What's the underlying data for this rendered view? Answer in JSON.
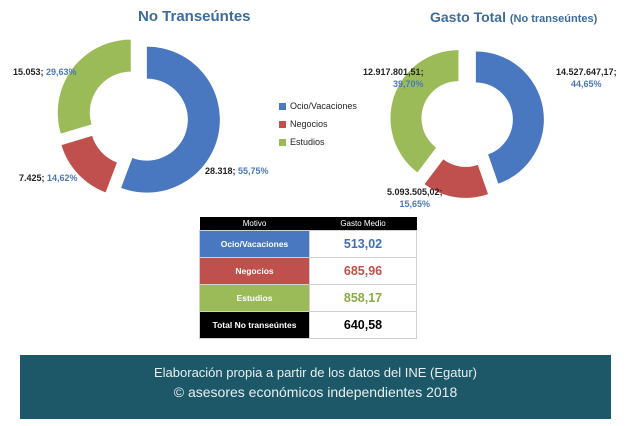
{
  "colors": {
    "blue": "#4a78c0",
    "red": "#c0504d",
    "green": "#9bbb59",
    "title": "#3d6b9c",
    "footer_bg": "#1d5868"
  },
  "chart_data": [
    {
      "type": "pie",
      "title": "No Transeúntes",
      "subtitle": "",
      "categories": [
        "Ocio/Vacaciones",
        "Negocios",
        "Estudios"
      ],
      "values": [
        28318,
        7425,
        15053
      ],
      "percentages": [
        55.75,
        14.62,
        29.63
      ],
      "value_labels": [
        "28.318",
        "7.425",
        "15.053"
      ],
      "percent_labels": [
        "55,75%",
        "14,62%",
        "29,63%"
      ],
      "colors": [
        "#4a78c0",
        "#c0504d",
        "#9bbb59"
      ]
    },
    {
      "type": "pie",
      "title": "Gasto Total",
      "subtitle": "(No transeúntes)",
      "categories": [
        "Ocio/Vacaciones",
        "Negocios",
        "Estudios"
      ],
      "values": [
        14527647.17,
        5093505.02,
        12917801.51
      ],
      "percentages": [
        44.65,
        15.65,
        39.7
      ],
      "value_labels": [
        "14.527.647,17",
        "5.093.505,02",
        "12.917.801,51"
      ],
      "percent_labels": [
        "44,65%",
        "15,65%",
        "39,70%"
      ],
      "colors": [
        "#4a78c0",
        "#c0504d",
        "#9bbb59"
      ]
    }
  ],
  "legend": {
    "items": [
      {
        "label": "Ocio/Vacaciones",
        "color": "#4a78c0"
      },
      {
        "label": "Negocios",
        "color": "#c0504d"
      },
      {
        "label": "Estudios",
        "color": "#9bbb59"
      }
    ]
  },
  "table": {
    "headers": [
      "Motivo",
      "Gasto Medio"
    ],
    "rows": [
      {
        "motivo": "Ocio/Vacaciones",
        "gasto": "513,02",
        "bg": "#4a78c0",
        "valcolor": "#3f6fb5"
      },
      {
        "motivo": "Negocios",
        "gasto": "685,96",
        "bg": "#c0504d",
        "valcolor": "#c0504d"
      },
      {
        "motivo": "Estudios",
        "gasto": "858,17",
        "bg": "#9bbb59",
        "valcolor": "#8aab45"
      },
      {
        "motivo": "Total No transeúntes",
        "gasto": "640,58",
        "bg": "#000000",
        "valcolor": "#000000"
      }
    ]
  },
  "footer": {
    "line1": "Elaboración propia a partir de los datos del INE (Egatur)",
    "line2": "© asesores económicos independientes 2018"
  }
}
